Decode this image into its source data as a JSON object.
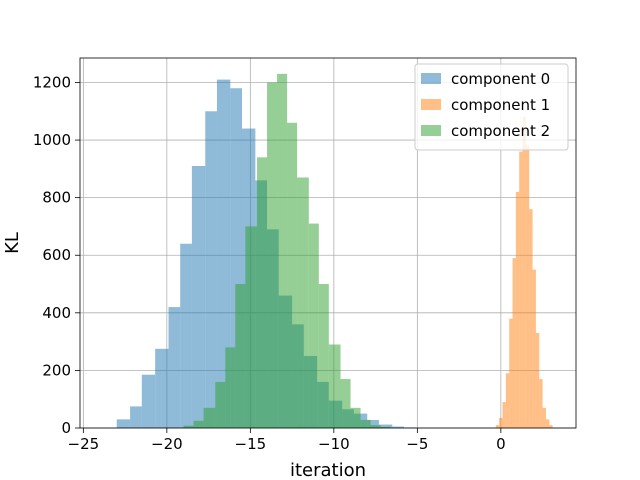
{
  "chart_data": {
    "type": "histogram",
    "xlabel": "iteration",
    "ylabel": "KL",
    "xlim": [
      -25.2,
      4.5
    ],
    "ylim": [
      0,
      1285
    ],
    "xticks": [
      -25,
      -20,
      -15,
      -10,
      -5,
      0
    ],
    "xtick_labels": [
      "−25",
      "−20",
      "−15",
      "−10",
      "−5",
      "0"
    ],
    "yticks": [
      0,
      200,
      400,
      600,
      800,
      1000,
      1200
    ],
    "ytick_labels": [
      "0",
      "200",
      "400",
      "600",
      "800",
      "1000",
      "1200"
    ],
    "grid": true,
    "legend_position": "top-right",
    "series": [
      {
        "name": "component 0",
        "color": "#1f77b4",
        "opacity": 0.5,
        "bins": [
          {
            "x0": -23.0,
            "x1": -22.2,
            "count": 30
          },
          {
            "x0": -22.2,
            "x1": -21.5,
            "count": 75
          },
          {
            "x0": -21.5,
            "x1": -20.7,
            "count": 185
          },
          {
            "x0": -20.7,
            "x1": -19.9,
            "count": 275
          },
          {
            "x0": -19.9,
            "x1": -19.2,
            "count": 420
          },
          {
            "x0": -19.2,
            "x1": -18.5,
            "count": 640
          },
          {
            "x0": -18.5,
            "x1": -17.7,
            "count": 910
          },
          {
            "x0": -17.7,
            "x1": -17.0,
            "count": 1100
          },
          {
            "x0": -17.0,
            "x1": -16.2,
            "count": 1210
          },
          {
            "x0": -16.2,
            "x1": -15.5,
            "count": 1180
          },
          {
            "x0": -15.5,
            "x1": -14.7,
            "count": 1040
          },
          {
            "x0": -14.7,
            "x1": -14.0,
            "count": 860
          },
          {
            "x0": -14.0,
            "x1": -13.3,
            "count": 690
          },
          {
            "x0": -13.3,
            "x1": -12.5,
            "count": 460
          },
          {
            "x0": -12.5,
            "x1": -11.8,
            "count": 360
          },
          {
            "x0": -11.8,
            "x1": -11.0,
            "count": 250
          },
          {
            "x0": -11.0,
            "x1": -10.3,
            "count": 160
          },
          {
            "x0": -10.3,
            "x1": -9.5,
            "count": 95
          },
          {
            "x0": -9.5,
            "x1": -8.8,
            "count": 65
          },
          {
            "x0": -8.8,
            "x1": -8.0,
            "count": 50
          },
          {
            "x0": -8.0,
            "x1": -7.3,
            "count": 28
          },
          {
            "x0": -7.3,
            "x1": -6.5,
            "count": 12
          },
          {
            "x0": -6.5,
            "x1": -5.8,
            "count": 5
          },
          {
            "x0": -5.8,
            "x1": -5.1,
            "count": 2
          }
        ]
      },
      {
        "name": "component 1",
        "color": "#ff7f0e",
        "opacity": 0.5,
        "bins": [
          {
            "x0": -0.3,
            "x1": -0.1,
            "count": 10
          },
          {
            "x0": -0.1,
            "x1": 0.1,
            "count": 35
          },
          {
            "x0": 0.1,
            "x1": 0.3,
            "count": 90
          },
          {
            "x0": 0.3,
            "x1": 0.5,
            "count": 190
          },
          {
            "x0": 0.5,
            "x1": 0.7,
            "count": 380
          },
          {
            "x0": 0.7,
            "x1": 0.9,
            "count": 590
          },
          {
            "x0": 0.9,
            "x1": 1.1,
            "count": 820
          },
          {
            "x0": 1.1,
            "x1": 1.3,
            "count": 960
          },
          {
            "x0": 1.3,
            "x1": 1.5,
            "count": 1080
          },
          {
            "x0": 1.5,
            "x1": 1.7,
            "count": 980
          },
          {
            "x0": 1.7,
            "x1": 1.9,
            "count": 760
          },
          {
            "x0": 1.9,
            "x1": 2.1,
            "count": 550
          },
          {
            "x0": 2.1,
            "x1": 2.3,
            "count": 330
          },
          {
            "x0": 2.3,
            "x1": 2.5,
            "count": 170
          },
          {
            "x0": 2.5,
            "x1": 2.7,
            "count": 70
          },
          {
            "x0": 2.7,
            "x1": 2.9,
            "count": 30
          },
          {
            "x0": 2.9,
            "x1": 3.1,
            "count": 10
          }
        ]
      },
      {
        "name": "component 2",
        "color": "#2ca02c",
        "opacity": 0.5,
        "bins": [
          {
            "x0": -19.0,
            "x1": -18.4,
            "count": 8
          },
          {
            "x0": -18.4,
            "x1": -17.8,
            "count": 25
          },
          {
            "x0": -17.8,
            "x1": -17.1,
            "count": 70
          },
          {
            "x0": -17.1,
            "x1": -16.5,
            "count": 160
          },
          {
            "x0": -16.5,
            "x1": -15.9,
            "count": 280
          },
          {
            "x0": -15.9,
            "x1": -15.3,
            "count": 500
          },
          {
            "x0": -15.3,
            "x1": -14.6,
            "count": 700
          },
          {
            "x0": -14.6,
            "x1": -14.0,
            "count": 940
          },
          {
            "x0": -14.0,
            "x1": -13.4,
            "count": 1200
          },
          {
            "x0": -13.4,
            "x1": -12.8,
            "count": 1230
          },
          {
            "x0": -12.8,
            "x1": -12.2,
            "count": 1060
          },
          {
            "x0": -12.2,
            "x1": -11.5,
            "count": 870
          },
          {
            "x0": -11.5,
            "x1": -10.9,
            "count": 710
          },
          {
            "x0": -10.9,
            "x1": -10.3,
            "count": 500
          },
          {
            "x0": -10.3,
            "x1": -9.6,
            "count": 290
          },
          {
            "x0": -9.6,
            "x1": -9.0,
            "count": 170
          },
          {
            "x0": -9.0,
            "x1": -8.4,
            "count": 70
          },
          {
            "x0": -8.4,
            "x1": -7.8,
            "count": 28
          },
          {
            "x0": -7.8,
            "x1": -7.2,
            "count": 10
          },
          {
            "x0": -7.2,
            "x1": -6.6,
            "count": 4
          }
        ]
      }
    ]
  }
}
